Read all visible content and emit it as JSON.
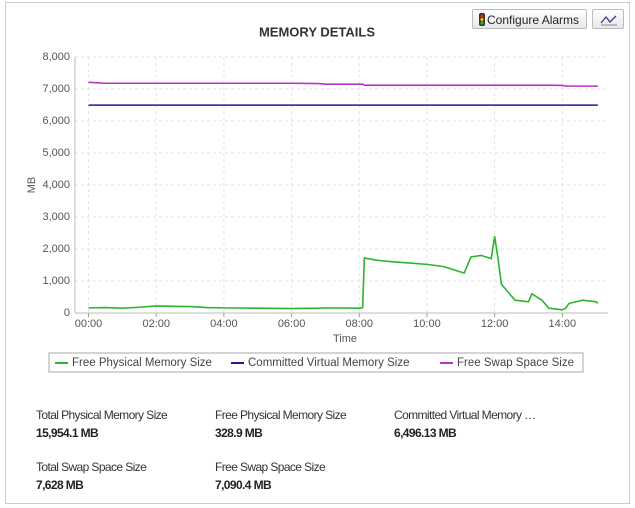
{
  "buttons": {
    "alarms": "Configure Alarms"
  },
  "chart_data": {
    "type": "line",
    "title": "MEMORY DETAILS",
    "x_label": "Time",
    "y_label": "MB",
    "x": [
      0,
      0.5,
      1,
      1.5,
      2,
      2.5,
      3,
      3.5,
      4,
      5,
      6,
      6.8,
      7,
      8,
      8.1,
      8.15,
      8.5,
      9,
      9.5,
      10,
      10.5,
      11,
      11.1,
      11.3,
      11.6,
      11.9,
      12,
      12.1,
      12.2,
      12.6,
      13,
      13.1,
      13.4,
      13.6,
      14,
      14.1,
      14.2,
      14.6,
      15,
      15.05
    ],
    "series": [
      {
        "name": "Free Physical Memory Size",
        "color": "#2db52d",
        "values": [
          160,
          170,
          150,
          180,
          220,
          210,
          200,
          170,
          160,
          150,
          140,
          150,
          160,
          150,
          170,
          1720,
          1650,
          1600,
          1560,
          1520,
          1450,
          1280,
          1250,
          1750,
          1800,
          1700,
          2400,
          1700,
          900,
          400,
          350,
          600,
          400,
          150,
          100,
          150,
          300,
          400,
          350,
          300
        ]
      },
      {
        "name": "Committed Virtual Memory Size",
        "color": "#1a1a9a",
        "values": [
          6496,
          6496,
          6496,
          6496,
          6496,
          6496,
          6496,
          6496,
          6496,
          6496,
          6496,
          6496,
          6496,
          6496,
          6496,
          6496,
          6496,
          6496,
          6496,
          6496,
          6496,
          6496,
          6496,
          6496,
          6496,
          6496,
          6496,
          6496,
          6496,
          6496,
          6496,
          6496,
          6496,
          6496,
          6496,
          6496,
          6496,
          6496,
          6496,
          6496
        ]
      },
      {
        "name": "Free Swap Space Size",
        "color": "#b833c8",
        "values": [
          7210,
          7180,
          7180,
          7180,
          7180,
          7180,
          7180,
          7180,
          7180,
          7180,
          7180,
          7170,
          7150,
          7150,
          7150,
          7120,
          7120,
          7120,
          7120,
          7120,
          7120,
          7120,
          7120,
          7120,
          7120,
          7120,
          7120,
          7120,
          7120,
          7120,
          7120,
          7120,
          7120,
          7120,
          7110,
          7090,
          7090,
          7090,
          7090,
          7090
        ]
      }
    ],
    "xlim": [
      -0.4,
      15.35
    ],
    "xticks": [
      {
        "value": 0,
        "label": "00:00"
      },
      {
        "value": 2,
        "label": "02:00"
      },
      {
        "value": 4,
        "label": "04:00"
      },
      {
        "value": 6,
        "label": "06:00"
      },
      {
        "value": 8,
        "label": "08:00"
      },
      {
        "value": 10,
        "label": "10:00"
      },
      {
        "value": 12,
        "label": "12:00"
      },
      {
        "value": 14,
        "label": "14:00"
      }
    ],
    "ylim": [
      0,
      8000
    ],
    "yticks": [
      0,
      {
        "value": 1000,
        "label": "1,000"
      },
      {
        "value": 2000,
        "label": "2,000"
      },
      {
        "value": 3000,
        "label": "3,000"
      },
      {
        "value": 4000,
        "label": "4,000"
      },
      {
        "value": 5000,
        "label": "5,000"
      },
      {
        "value": 6000,
        "label": "6,000"
      },
      {
        "value": 7000,
        "label": "7,000"
      },
      {
        "value": 8000,
        "label": "8,000"
      }
    ],
    "grid": true
  },
  "stats": [
    {
      "label": "Total Physical Memory Size",
      "value": "15,954.1 MB"
    },
    {
      "label": "Free Physical Memory Size",
      "value": "328.9 MB"
    },
    {
      "label": "Committed Virtual Memory …",
      "value": "6,496.13 MB"
    },
    {
      "label": "Total Swap Space Size",
      "value": "7,628 MB"
    },
    {
      "label": "Free Swap Space Size",
      "value": "7,090.4 MB"
    }
  ]
}
